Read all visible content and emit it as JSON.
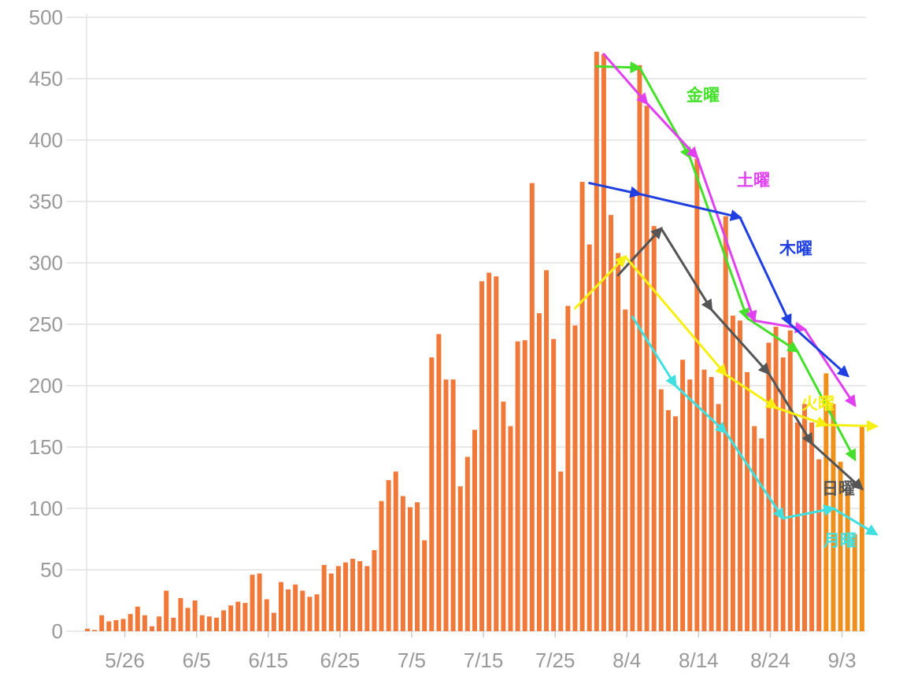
{
  "chart_data": {
    "type": "bar",
    "ylim": [
      0,
      500
    ],
    "yticks": [
      "0",
      "50",
      "100",
      "150",
      "200",
      "250",
      "300",
      "350",
      "400",
      "450",
      "500"
    ],
    "xticks": [
      {
        "label": "5/26",
        "index": 5
      },
      {
        "label": "6/5",
        "index": 15
      },
      {
        "label": "6/15",
        "index": 25
      },
      {
        "label": "6/25",
        "index": 35
      },
      {
        "label": "7/5",
        "index": 45
      },
      {
        "label": "7/15",
        "index": 55
      },
      {
        "label": "7/25",
        "index": 65
      },
      {
        "label": "8/4",
        "index": 75
      },
      {
        "label": "8/14",
        "index": 85
      },
      {
        "label": "8/24",
        "index": 95
      },
      {
        "label": "9/3",
        "index": 105
      }
    ],
    "grid": true,
    "bar_color": "#f07838",
    "highlight_color": "#f0901c",
    "values": [
      2,
      1,
      13,
      8,
      9,
      10,
      14,
      20,
      13,
      4,
      12,
      33,
      11,
      27,
      19,
      25,
      13,
      12,
      11,
      17,
      21,
      24,
      23,
      46,
      47,
      26,
      15,
      40,
      34,
      38,
      33,
      28,
      30,
      54,
      47,
      53,
      56,
      59,
      57,
      53,
      66,
      106,
      123,
      130,
      110,
      101,
      105,
      74,
      223,
      242,
      205,
      205,
      118,
      142,
      164,
      285,
      292,
      289,
      187,
      167,
      236,
      237,
      365,
      259,
      294,
      238,
      130,
      265,
      249,
      366,
      315,
      472,
      470,
      339,
      308,
      262,
      358,
      461,
      428,
      330,
      197,
      180,
      175,
      221,
      205,
      385,
      213,
      207,
      185,
      338,
      257,
      253,
      211,
      167,
      157,
      235,
      248,
      223,
      245,
      170,
      185,
      170,
      140,
      210,
      185,
      138,
      113,
      79,
      167
    ],
    "highlighted_indices": [
      103,
      104,
      105,
      106,
      107,
      108
    ],
    "series": [
      {
        "name": "金曜",
        "color": "#44e02a",
        "points": [
          [
            71,
            460
          ],
          [
            77,
            459
          ],
          [
            84,
            386
          ],
          [
            92,
            255
          ],
          [
            99,
            228
          ],
          [
            107,
            140
          ]
        ]
      },
      {
        "name": "土曜",
        "color": "#e040f0",
        "points": [
          [
            72,
            470
          ],
          [
            78,
            430
          ],
          [
            85,
            386
          ],
          [
            93,
            253
          ],
          [
            100,
            246
          ],
          [
            107,
            184
          ]
        ]
      },
      {
        "name": "木曜",
        "color": "#1f3fe0",
        "points": [
          [
            70,
            365
          ],
          [
            77,
            356
          ],
          [
            91,
            337
          ],
          [
            98,
            250
          ],
          [
            106,
            208
          ]
        ]
      },
      {
        "name": "日曜",
        "color": "#555555",
        "points": [
          [
            74,
            290
          ],
          [
            80,
            328
          ],
          [
            87,
            262
          ],
          [
            95,
            210
          ],
          [
            101,
            153
          ],
          [
            108,
            116
          ]
        ]
      },
      {
        "name": "火曜",
        "color": "#f6f012",
        "points": [
          [
            68,
            263
          ],
          [
            75,
            305
          ],
          [
            89,
            209
          ],
          [
            96,
            182
          ],
          [
            103,
            168
          ],
          [
            110,
            167
          ]
        ]
      },
      {
        "name": "月曜",
        "color": "#40e0e0",
        "points": [
          [
            76,
            256
          ],
          [
            82,
            200
          ],
          [
            89,
            162
          ],
          [
            97,
            92
          ],
          [
            104,
            100
          ],
          [
            110,
            79
          ]
        ]
      }
    ]
  }
}
